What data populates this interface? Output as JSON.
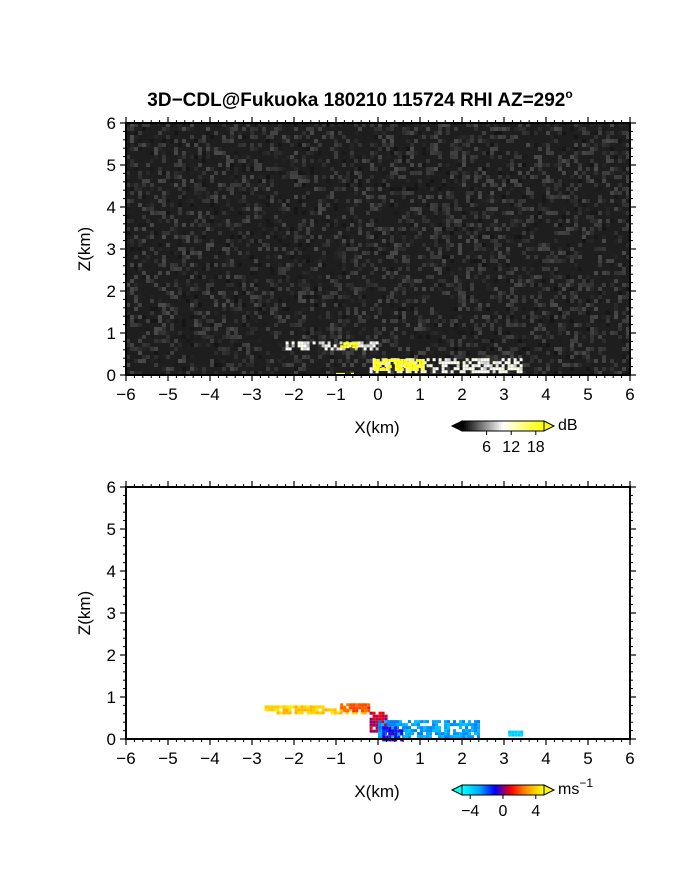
{
  "title": "3D−CDL@Fukuoka 180210 115724 RHI AZ=292",
  "title_superscript": "o",
  "chart_data": [
    {
      "type": "heatmap",
      "panel": "reflectivity",
      "xlabel": "X(km)",
      "ylabel": "Z(km)",
      "xlim": [
        -6,
        6
      ],
      "ylim": [
        0,
        6
      ],
      "xticks": [
        "−6",
        "−5",
        "−4",
        "−3",
        "−2",
        "−1",
        "0",
        "1",
        "2",
        "3",
        "4",
        "5",
        "6"
      ],
      "yticks": [
        "0",
        "1",
        "2",
        "3",
        "4",
        "5",
        "6"
      ],
      "background": "noise",
      "colorbar": {
        "unit": "dB",
        "ticks": [
          "6",
          "12",
          "18"
        ],
        "range": [
          0,
          20
        ],
        "colors": [
          "#000000",
          "#ffffff",
          "#ffff00"
        ]
      },
      "features": [
        {
          "name": "upper echo layer",
          "x": [
            -2.2,
            0.0
          ],
          "z": [
            0.65,
            0.8
          ],
          "value_db": 9
        },
        {
          "name": "upper layer core",
          "x": [
            -0.9,
            -0.5
          ],
          "z": [
            0.68,
            0.78
          ],
          "value_db": 19
        },
        {
          "name": "lower echo layer",
          "x": [
            -0.2,
            3.4
          ],
          "z": [
            0.08,
            0.4
          ],
          "value_db": 10
        },
        {
          "name": "lower layer core",
          "x": [
            -0.1,
            1.1
          ],
          "z": [
            0.15,
            0.38
          ],
          "value_db": 19
        },
        {
          "name": "near-ground echo",
          "x": [
            -1.0,
            -0.5
          ],
          "z": [
            0.0,
            0.05
          ],
          "value_db": 16
        }
      ]
    },
    {
      "type": "heatmap",
      "panel": "doppler velocity",
      "xlabel": "X(km)",
      "ylabel": "Z(km)",
      "xlim": [
        -6,
        6
      ],
      "ylim": [
        0,
        6
      ],
      "xticks": [
        "−6",
        "−5",
        "−4",
        "−3",
        "−2",
        "−1",
        "0",
        "1",
        "2",
        "3",
        "4",
        "5",
        "6"
      ],
      "yticks": [
        "0",
        "1",
        "2",
        "3",
        "4",
        "5",
        "6"
      ],
      "background": "white",
      "colorbar": {
        "unit": "ms",
        "unit_exponent": "−1",
        "ticks": [
          "−4",
          "0",
          "4"
        ],
        "range": [
          -5,
          5
        ],
        "colors": [
          "#00ffff",
          "#00aaff",
          "#0000ff",
          "#ff0000",
          "#ff9900",
          "#ffff00"
        ]
      },
      "features": [
        {
          "name": "upper layer outflow",
          "x": [
            -2.7,
            -0.3
          ],
          "z": [
            0.65,
            0.8
          ],
          "value_ms": 4
        },
        {
          "name": "upper layer orange",
          "x": [
            -0.9,
            -0.2
          ],
          "z": [
            0.65,
            0.85
          ],
          "value_ms": 2
        },
        {
          "name": "shear zone red",
          "x": [
            -0.2,
            0.2
          ],
          "z": [
            0.2,
            0.65
          ],
          "value_ms": 0.5
        },
        {
          "name": "lower layer inflow",
          "x": [
            0.0,
            2.4
          ],
          "z": [
            0.05,
            0.45
          ],
          "value_ms": -3
        },
        {
          "name": "lower layer core",
          "x": [
            0.1,
            0.6
          ],
          "z": [
            0.0,
            0.3
          ],
          "value_ms": -1
        },
        {
          "name": "isolated gates",
          "x": [
            3.1,
            3.4
          ],
          "z": [
            0.12,
            0.2
          ],
          "value_ms": -4
        }
      ]
    }
  ]
}
